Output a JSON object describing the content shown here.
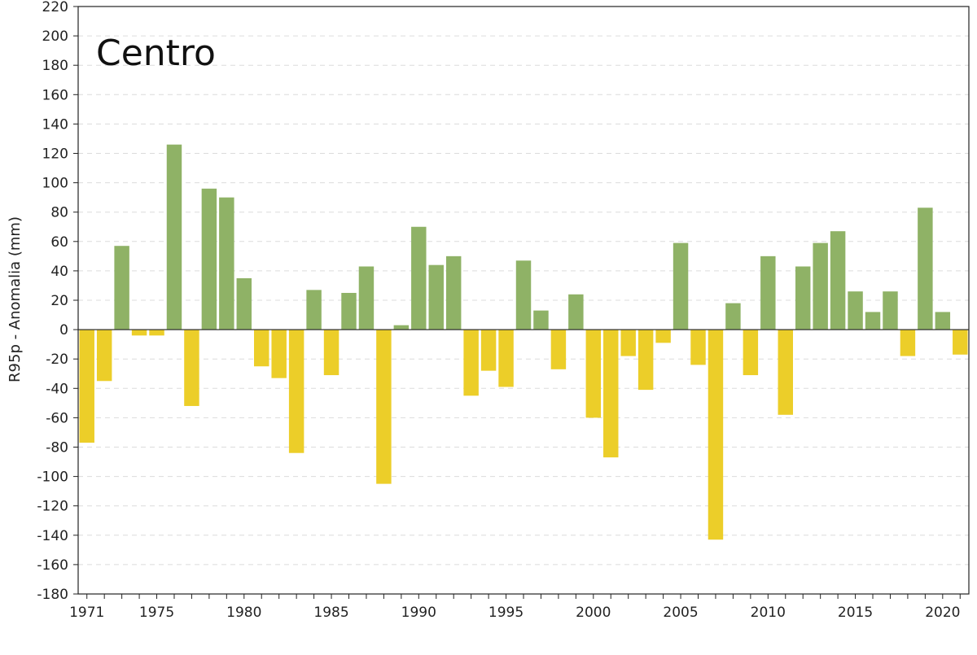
{
  "chart_data": {
    "type": "bar",
    "title": "Centro",
    "ylabel": "R95p - Anomalia (mm)",
    "xlabel": "",
    "ylim": [
      -180,
      220
    ],
    "ytick_step": 20,
    "xtick_labels": [
      "1971",
      "1975",
      "1980",
      "1985",
      "1990",
      "1995",
      "2000",
      "2005",
      "2010",
      "2015",
      "2020"
    ],
    "colors": {
      "positive": "#8fb266",
      "negative": "#ecce29",
      "zero_line": "#333333"
    },
    "grid": true,
    "categories": [
      1971,
      1972,
      1973,
      1974,
      1975,
      1976,
      1977,
      1978,
      1979,
      1980,
      1981,
      1982,
      1983,
      1984,
      1985,
      1986,
      1987,
      1988,
      1989,
      1990,
      1991,
      1992,
      1993,
      1994,
      1995,
      1996,
      1997,
      1998,
      1999,
      2000,
      2001,
      2002,
      2003,
      2004,
      2005,
      2006,
      2007,
      2008,
      2009,
      2010,
      2011,
      2012,
      2013,
      2014,
      2015,
      2016,
      2017,
      2018,
      2019,
      2020,
      2021
    ],
    "values": [
      -77,
      -35,
      57,
      -4,
      -4,
      126,
      -52,
      96,
      90,
      35,
      -25,
      -33,
      -84,
      27,
      -31,
      25,
      43,
      -105,
      3,
      70,
      44,
      50,
      -45,
      -28,
      -39,
      47,
      13,
      -27,
      24,
      -60,
      -87,
      -18,
      -41,
      -9,
      59,
      -24,
      -143,
      18,
      -31,
      50,
      -58,
      43,
      59,
      67,
      26,
      12,
      26,
      -18,
      83,
      12,
      -17
    ]
  }
}
